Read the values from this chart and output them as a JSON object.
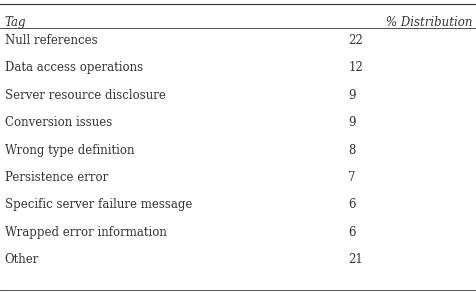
{
  "col1_header": "Tag",
  "col2_header": "% Distribution",
  "rows": [
    [
      "Null references",
      "22"
    ],
    [
      "Data access operations",
      "12"
    ],
    [
      "Server resource disclosure",
      "9"
    ],
    [
      "Conversion issues",
      "9"
    ],
    [
      "Wrong type definition",
      "8"
    ],
    [
      "Persistence error",
      "7"
    ],
    [
      "Specific server failure message",
      "6"
    ],
    [
      "Wrapped error information",
      "6"
    ],
    [
      "Other",
      "21"
    ]
  ],
  "background_color": "#ffffff",
  "text_color": "#333333",
  "font_size": 8.5,
  "header_font_size": 8.5
}
